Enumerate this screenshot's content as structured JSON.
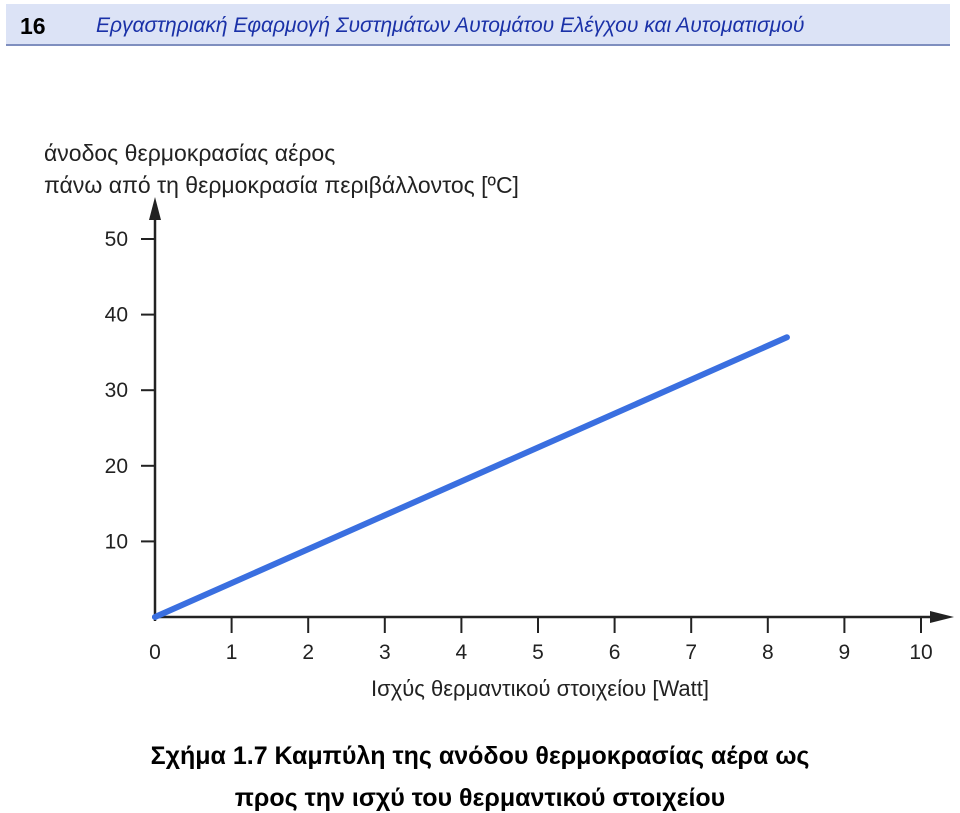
{
  "header": {
    "page_number": "16",
    "running_title": "Εργαστηριακή Εφαρμογή Συστημάτων Αυτομάτου Ελέγχου και Αυτοματισμού",
    "band_color": "#dce3f6",
    "title_color": "#1a31a8"
  },
  "chart_data": {
    "type": "line",
    "ylabel_lines": [
      "άνοδος θερμοκρασίας αέρος",
      "πάνω από τη θερμοκρασία περιβάλλοντος [ºC]"
    ],
    "xlabel": "Ισχύς θερμαντικού στοιχείου [Watt]",
    "x_ticks": [
      0,
      1,
      2,
      3,
      4,
      5,
      6,
      7,
      8,
      9,
      10
    ],
    "y_ticks": [
      10,
      20,
      30,
      40,
      50
    ],
    "xlim": [
      0,
      10
    ],
    "ylim": [
      0,
      50
    ],
    "grid": false,
    "line_color": "#3a6fe0",
    "series": [
      {
        "x": [
          0,
          8.25
        ],
        "y": [
          0,
          37
        ]
      }
    ]
  },
  "caption": {
    "line1": "Σχήμα 1.7  Καμπύλη της ανόδου θερμοκρασίας αέρα ως",
    "line2": "προς την ισχύ του θερμαντικού στοιχείου"
  }
}
